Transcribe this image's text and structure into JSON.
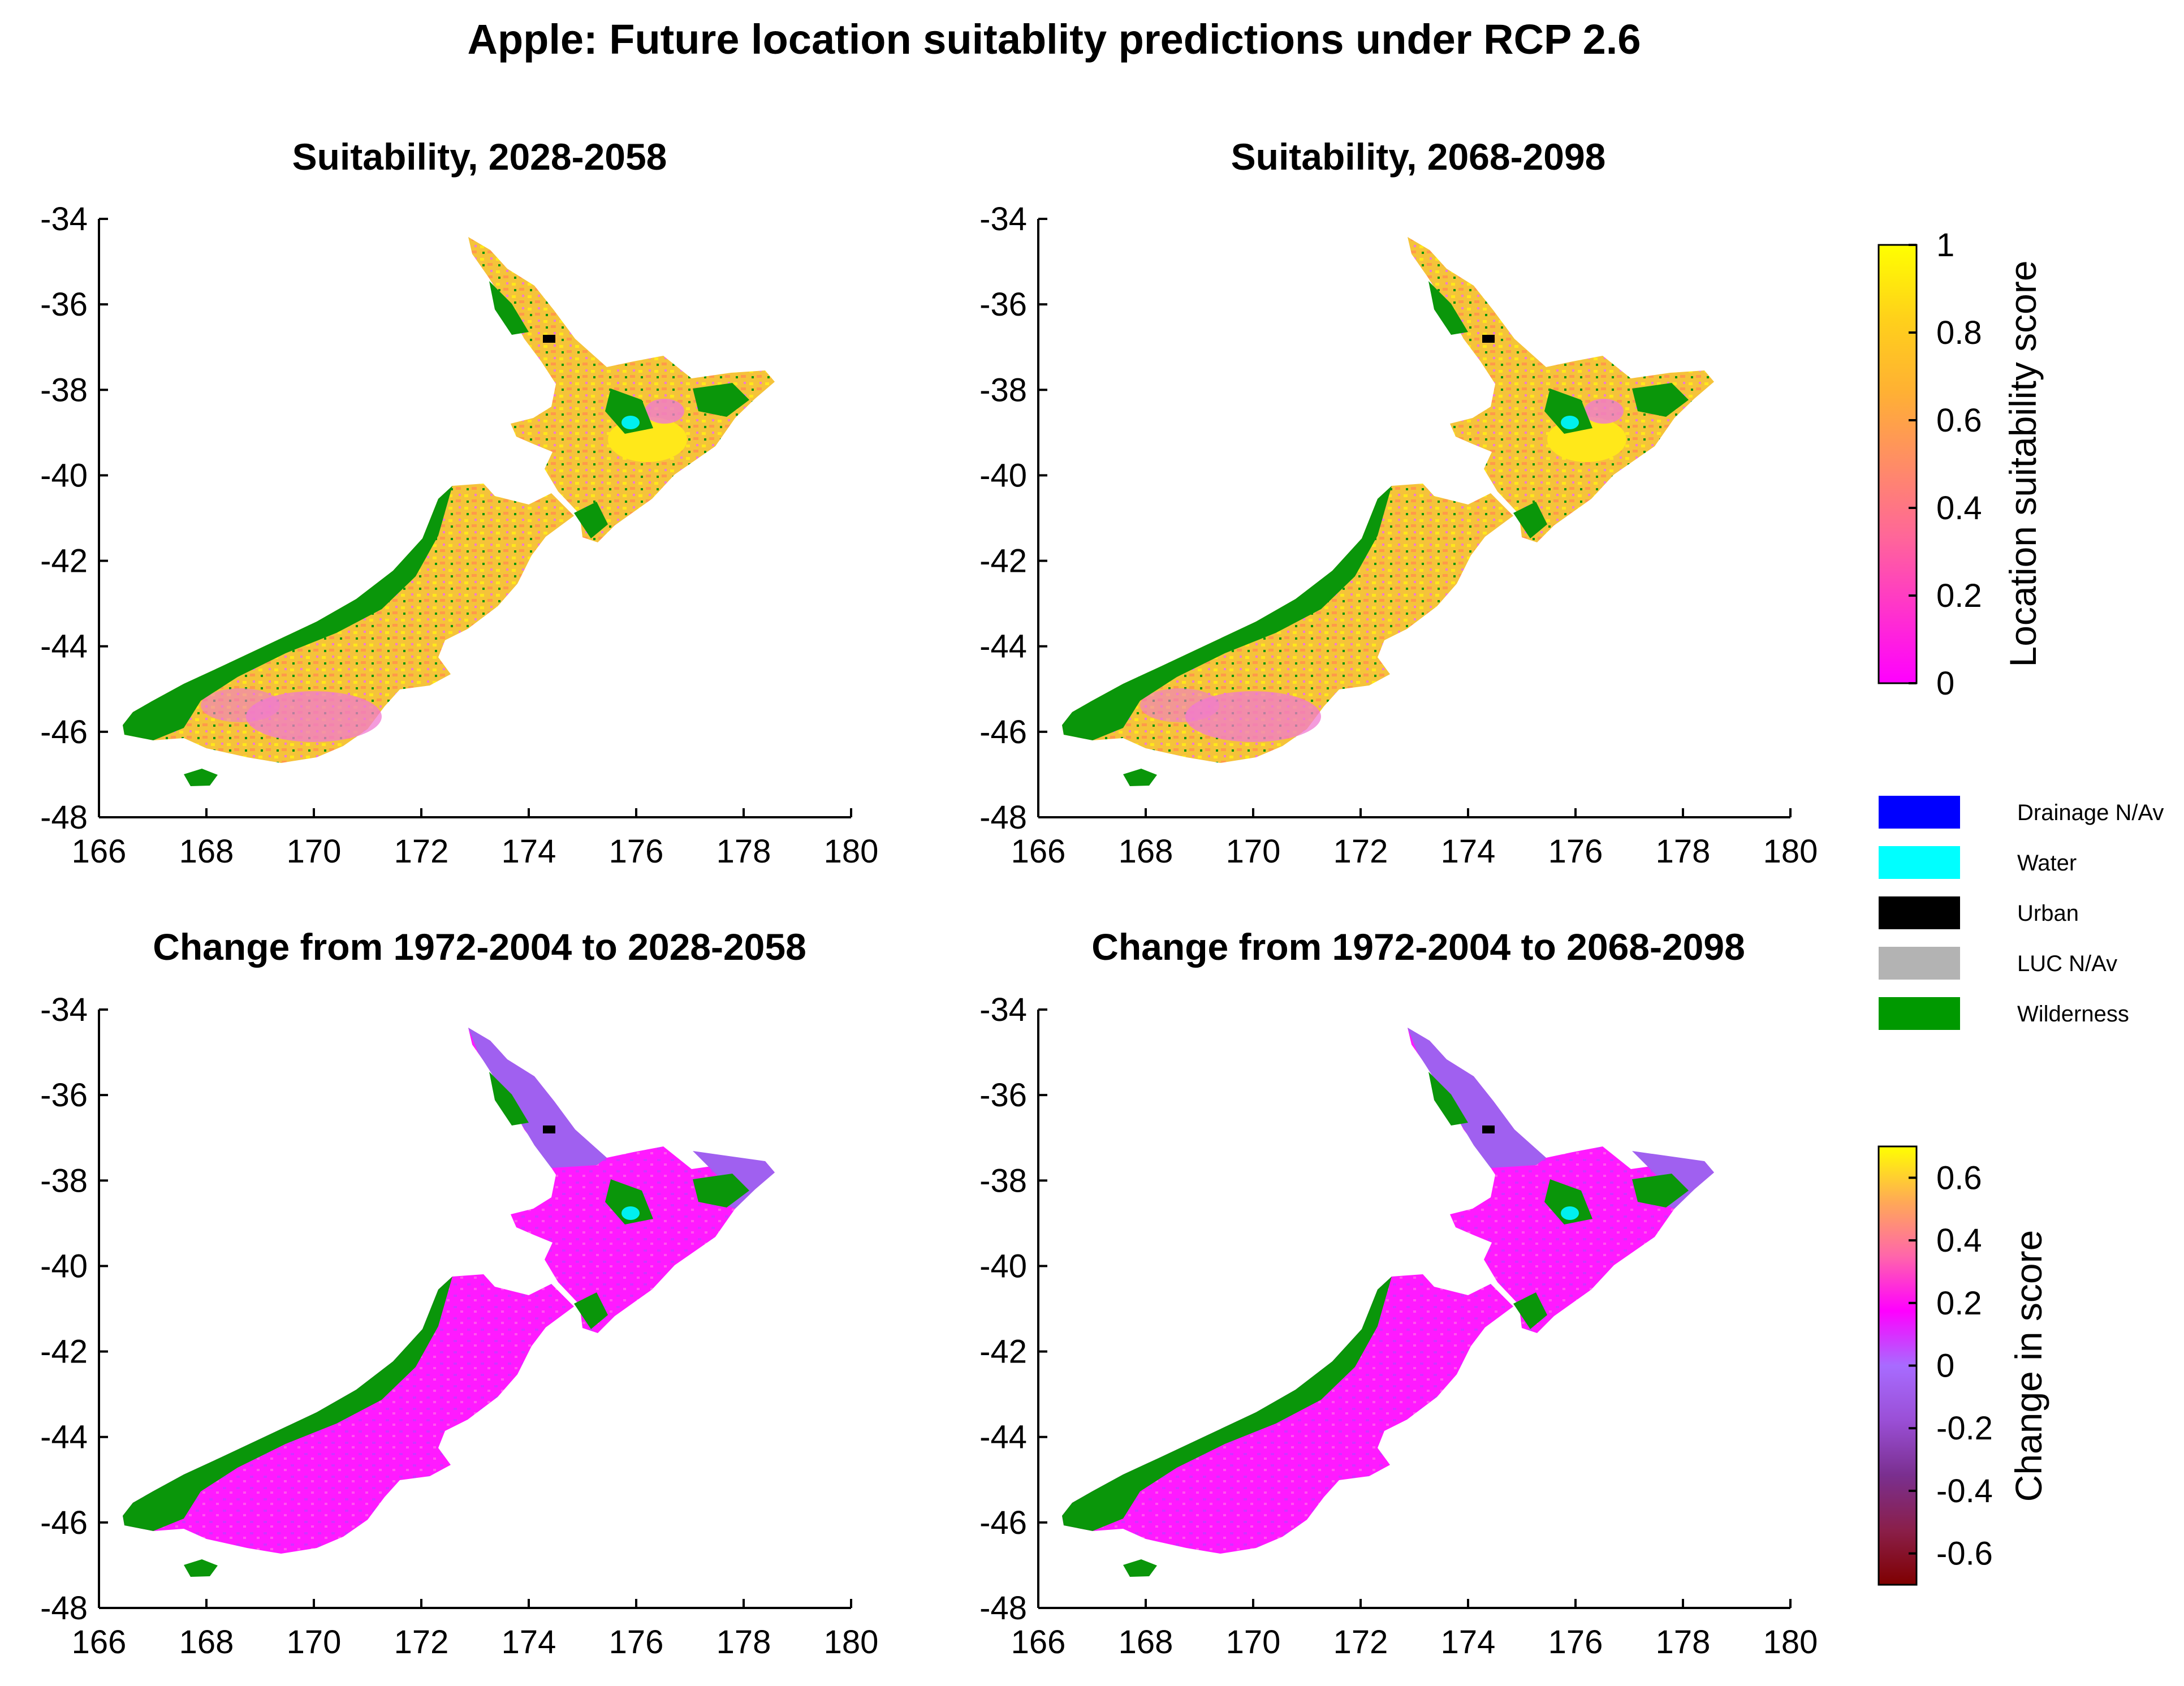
{
  "figure": {
    "title": "Apple: Future location suitablity predictions under RCP 2.6"
  },
  "panels": [
    {
      "title": "Suitability, 2028-2058",
      "kind": "suitability"
    },
    {
      "title": "Suitability, 2068-2098",
      "kind": "suitability"
    },
    {
      "title": "Change from 1972-2004 to 2028-2058",
      "kind": "change"
    },
    {
      "title": "Change from 1972-2004 to 2068-2098",
      "kind": "change"
    }
  ],
  "axes": {
    "x_ticks": [
      "166",
      "168",
      "170",
      "172",
      "174",
      "176",
      "178",
      "180"
    ],
    "y_ticks": [
      "-34",
      "-36",
      "-38",
      "-40",
      "-42",
      "-44",
      "-46",
      "-48"
    ],
    "xlim": [
      166,
      180
    ],
    "ylim": [
      -48,
      -34
    ]
  },
  "colorbars": {
    "suitability": {
      "title": "Location suitability score",
      "ticks": [
        "1",
        "0.8",
        "0.6",
        "0.4",
        "0.2",
        "0"
      ],
      "range": [
        0,
        1
      ],
      "colors": [
        "#ff00ff",
        "#ff33cc",
        "#ff6699",
        "#ff8c66",
        "#ffb133",
        "#ffd11a",
        "#ffff00"
      ]
    },
    "change": {
      "title": "Change in score",
      "ticks": [
        "0.6",
        "0.4",
        "0.2",
        "0",
        "-0.2",
        "-0.4",
        "-0.6"
      ],
      "range": [
        -0.7,
        0.7
      ],
      "colors_positive": [
        "#ff00ff",
        "#ff66aa",
        "#ffaa55",
        "#ffff00"
      ],
      "colors_negative": [
        "#7f0000",
        "#8a1f4a",
        "#7a2f8f",
        "#9a4fd6",
        "#a86bff"
      ]
    }
  },
  "legend": {
    "items": [
      {
        "label": "Drainage N/Av",
        "color": "#0000ff"
      },
      {
        "label": "Water",
        "color": "#00ffff"
      },
      {
        "label": "Urban",
        "color": "#000000"
      },
      {
        "label": "LUC N/Av",
        "color": "#b3b3b3"
      },
      {
        "label": "Wilderness",
        "color": "#009900"
      }
    ]
  },
  "map_colors": {
    "wilderness": "#0a960a",
    "suitability_land": "#f5c33a",
    "suitability_high": "#ffe81a",
    "suitability_low": "#f07ad0",
    "change_north": "#a060f0",
    "change_land": "#ff1aff",
    "water": "#00f0f0",
    "urban": "#000000"
  }
}
